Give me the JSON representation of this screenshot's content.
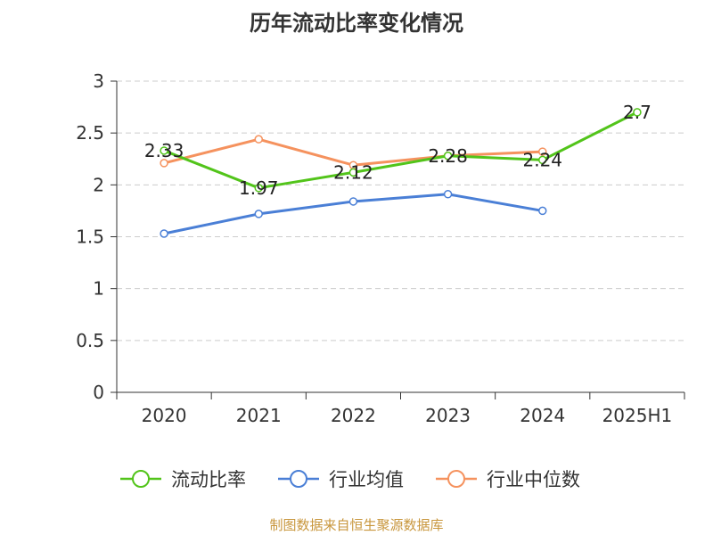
{
  "colors": {
    "current_ratio": "#52c41a",
    "industry_avg": "#4a7fd6",
    "industry_median": "#f5925e",
    "grid": "#cccccc",
    "axis": "#333333",
    "source": "#c8963c"
  },
  "chart_data": {
    "type": "line",
    "title": "历年流动比率变化情况",
    "categories": [
      "2020",
      "2021",
      "2022",
      "2023",
      "2024",
      "2025H1"
    ],
    "ylim": [
      0,
      3
    ],
    "yticks": [
      "0",
      "0.5",
      "1",
      "1.5",
      "2",
      "2.5",
      "3"
    ],
    "grid": true,
    "legend_position": "bottom",
    "series": [
      {
        "name": "流动比率",
        "values": [
          2.33,
          1.97,
          2.12,
          2.28,
          2.24,
          2.7
        ],
        "labels": [
          "2.33",
          "1.97",
          "2.12",
          "2.28",
          "2.24",
          "2.7"
        ]
      },
      {
        "name": "行业均值",
        "values": [
          1.53,
          1.72,
          1.84,
          1.91,
          1.75,
          null
        ]
      },
      {
        "name": "行业中位数",
        "values": [
          2.21,
          2.44,
          2.19,
          2.28,
          2.32,
          null
        ]
      }
    ]
  },
  "source_note": "制图数据来自恒生聚源数据库"
}
